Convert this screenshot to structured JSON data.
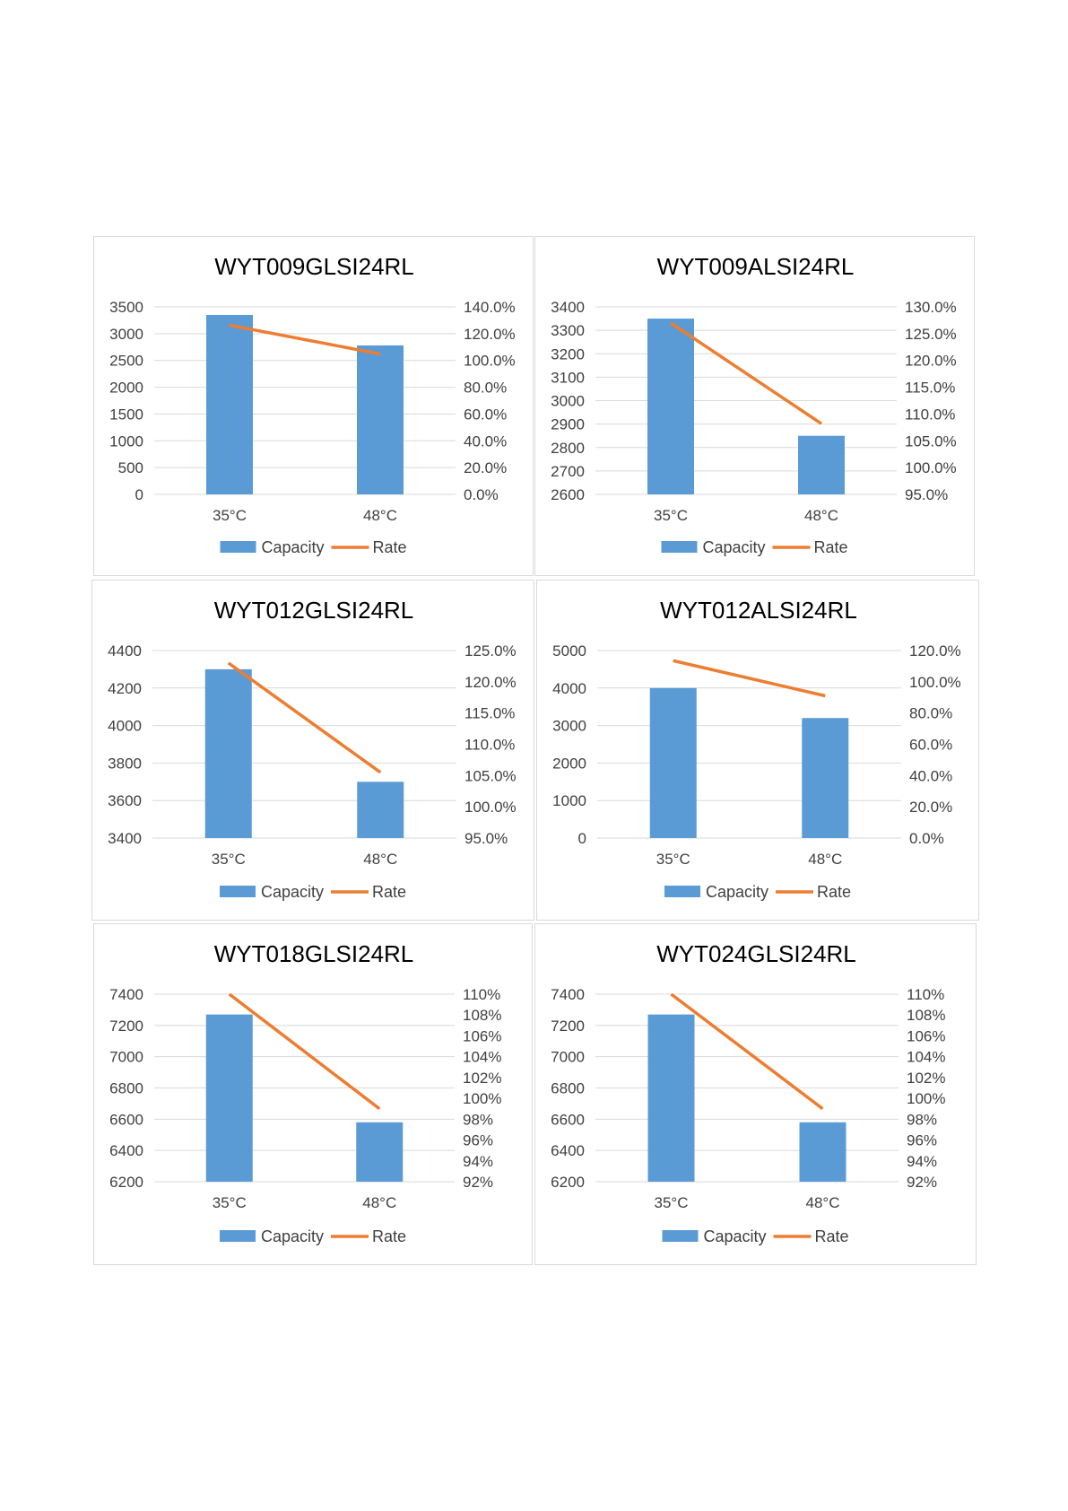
{
  "colors": {
    "capacity": "#5b9bd5",
    "rate": "#ed7d31",
    "grid": "#d9d9d9",
    "text": "#404040"
  },
  "chart_data": [
    {
      "type": "bar",
      "title": "WYT009GLSI24RL",
      "categories": [
        "35°C",
        "48°C"
      ],
      "series": [
        {
          "name": "Capacity",
          "type": "bar",
          "axis": "left",
          "values": [
            3350,
            2780
          ]
        },
        {
          "name": "Rate",
          "type": "line",
          "axis": "right",
          "values": [
            1.263,
            1.048
          ]
        }
      ],
      "y_left": {
        "ticks": [
          "0",
          "500",
          "1000",
          "1500",
          "2000",
          "2500",
          "3000",
          "3500"
        ],
        "min": 0,
        "max": 3500
      },
      "y_right": {
        "ticks": [
          "0.0%",
          "20.0%",
          "40.0%",
          "60.0%",
          "80.0%",
          "100.0%",
          "120.0%",
          "140.0%"
        ],
        "min": 0,
        "max": 1.4
      },
      "legend": [
        "Capacity",
        "Rate"
      ],
      "legend_position": "bottom",
      "grid": true
    },
    {
      "type": "bar",
      "title": "WYT009ALSI24RL",
      "categories": [
        "35°C",
        "48°C"
      ],
      "series": [
        {
          "name": "Capacity",
          "type": "bar",
          "axis": "left",
          "values": [
            3350,
            2850
          ]
        },
        {
          "name": "Rate",
          "type": "line",
          "axis": "right",
          "values": [
            1.27,
            1.082
          ]
        }
      ],
      "y_left": {
        "ticks": [
          "2600",
          "2700",
          "2800",
          "2900",
          "3000",
          "3100",
          "3200",
          "3300",
          "3400"
        ],
        "min": 2600,
        "max": 3400
      },
      "y_right": {
        "ticks": [
          "95.0%",
          "100.0%",
          "105.0%",
          "110.0%",
          "115.0%",
          "120.0%",
          "125.0%",
          "130.0%"
        ],
        "min": 0.95,
        "max": 1.3
      },
      "legend": [
        "Capacity",
        "Rate"
      ],
      "legend_position": "bottom",
      "grid": true
    },
    {
      "type": "bar",
      "title": "WYT012GLSI24RL",
      "categories": [
        "35°C",
        "48°C"
      ],
      "series": [
        {
          "name": "Capacity",
          "type": "bar",
          "axis": "left",
          "values": [
            4300,
            3700
          ]
        },
        {
          "name": "Rate",
          "type": "line",
          "axis": "right",
          "values": [
            1.23,
            1.055
          ]
        }
      ],
      "y_left": {
        "ticks": [
          "3400",
          "3600",
          "3800",
          "4000",
          "4200",
          "4400"
        ],
        "min": 3400,
        "max": 4400
      },
      "y_right": {
        "ticks": [
          "95.0%",
          "100.0%",
          "105.0%",
          "110.0%",
          "115.0%",
          "120.0%",
          "125.0%"
        ],
        "min": 0.95,
        "max": 1.25
      },
      "legend": [
        "Capacity",
        "Rate"
      ],
      "legend_position": "bottom",
      "grid": true
    },
    {
      "type": "bar",
      "title": "WYT012ALSI24RL",
      "categories": [
        "35°C",
        "48°C"
      ],
      "series": [
        {
          "name": "Capacity",
          "type": "bar",
          "axis": "left",
          "values": [
            4000,
            3200
          ]
        },
        {
          "name": "Rate",
          "type": "line",
          "axis": "right",
          "values": [
            1.135,
            0.91
          ]
        }
      ],
      "y_left": {
        "ticks": [
          "0",
          "1000",
          "2000",
          "3000",
          "4000",
          "5000"
        ],
        "min": 0,
        "max": 5000
      },
      "y_right": {
        "ticks": [
          "0.0%",
          "20.0%",
          "40.0%",
          "60.0%",
          "80.0%",
          "100.0%",
          "120.0%"
        ],
        "min": 0,
        "max": 1.2
      },
      "legend": [
        "Capacity",
        "Rate"
      ],
      "legend_position": "bottom",
      "grid": true
    },
    {
      "type": "bar",
      "title": "WYT018GLSI24RL",
      "categories": [
        "35°C",
        "48°C"
      ],
      "series": [
        {
          "name": "Capacity",
          "type": "bar",
          "axis": "left",
          "values": [
            7270,
            6580
          ]
        },
        {
          "name": "Rate",
          "type": "line",
          "axis": "right",
          "values": [
            1.1,
            0.99
          ]
        }
      ],
      "y_left": {
        "ticks": [
          "6200",
          "6400",
          "6600",
          "6800",
          "7000",
          "7200",
          "7400"
        ],
        "min": 6200,
        "max": 7400
      },
      "y_right": {
        "ticks": [
          "92%",
          "94%",
          "96%",
          "98%",
          "100%",
          "102%",
          "104%",
          "106%",
          "108%",
          "110%"
        ],
        "min": 0.92,
        "max": 1.1
      },
      "legend": [
        "Capacity",
        "Rate"
      ],
      "legend_position": "bottom",
      "grid": true
    },
    {
      "type": "bar",
      "title": "WYT024GLSI24RL",
      "categories": [
        "35°C",
        "48°C"
      ],
      "series": [
        {
          "name": "Capacity",
          "type": "bar",
          "axis": "left",
          "values": [
            7270,
            6580
          ]
        },
        {
          "name": "Rate",
          "type": "line",
          "axis": "right",
          "values": [
            1.1,
            0.99
          ]
        }
      ],
      "y_left": {
        "ticks": [
          "6200",
          "6400",
          "6600",
          "6800",
          "7000",
          "7200",
          "7400"
        ],
        "min": 6200,
        "max": 7400
      },
      "y_right": {
        "ticks": [
          "92%",
          "94%",
          "96%",
          "98%",
          "100%",
          "102%",
          "104%",
          "106%",
          "108%",
          "110%"
        ],
        "min": 0.92,
        "max": 1.1
      },
      "legend": [
        "Capacity",
        "Rate"
      ],
      "legend_position": "bottom",
      "grid": true
    }
  ]
}
